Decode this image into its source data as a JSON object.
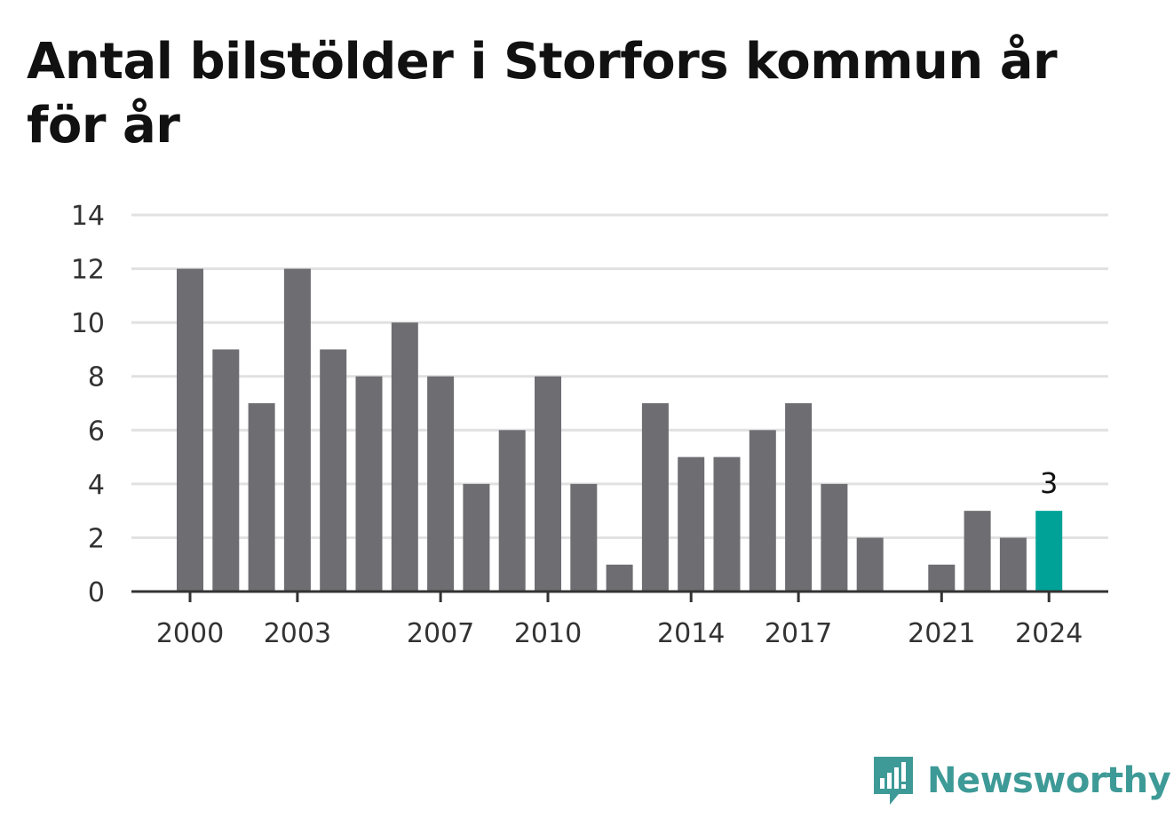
{
  "title": "Antal bilstölder i Storfors kommun år för år",
  "brand": {
    "name": "Newsworthy",
    "icon": "newsworthy-logo-icon",
    "color": "#3e9a97"
  },
  "chart_data": {
    "type": "bar",
    "title": "Antal bilstölder i Storfors kommun år för år",
    "xlabel": "",
    "ylabel": "",
    "categories": [
      "2000",
      "2001",
      "2002",
      "2003",
      "2004",
      "2005",
      "2006",
      "2007",
      "2008",
      "2009",
      "2010",
      "2011",
      "2012",
      "2013",
      "2014",
      "2015",
      "2016",
      "2017",
      "2018",
      "2019",
      "2020",
      "2021",
      "2022",
      "2023",
      "2024"
    ],
    "values": [
      12,
      9,
      7,
      12,
      9,
      8,
      10,
      8,
      4,
      6,
      8,
      4,
      1,
      7,
      5,
      5,
      6,
      7,
      4,
      2,
      0,
      1,
      3,
      2,
      3
    ],
    "x_tick_labels": [
      "2000",
      "2003",
      "2007",
      "2010",
      "2014",
      "2017",
      "2021",
      "2024"
    ],
    "y_ticks": [
      0,
      2,
      4,
      6,
      8,
      10,
      12,
      14
    ],
    "ylim": [
      0,
      14
    ],
    "grid": true,
    "highlight": {
      "category": "2024",
      "label": "3"
    },
    "colors": {
      "bar": "#6e6d72",
      "highlight": "#00a297",
      "grid": "#e1e1e1",
      "axis": "#333333"
    }
  }
}
